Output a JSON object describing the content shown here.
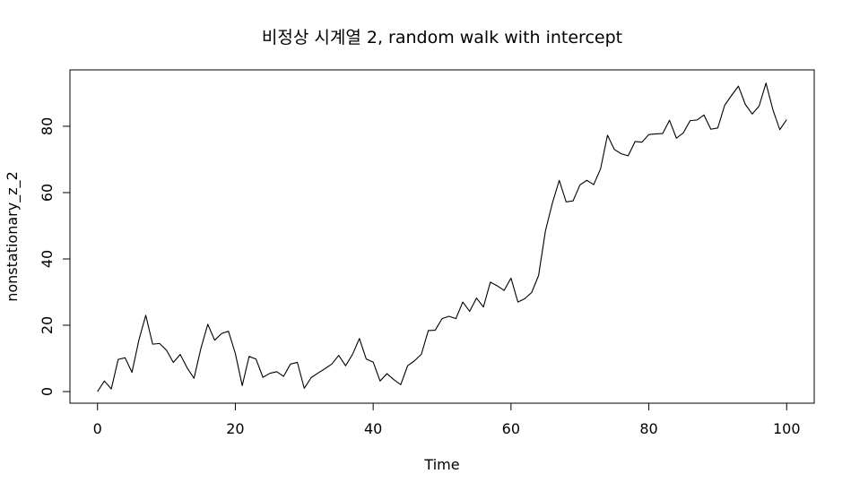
{
  "chart_data": {
    "type": "line",
    "title": "비정상 시계열 2, random walk with intercept",
    "xlabel": "Time",
    "ylabel": "nonstationary_z_2",
    "xlim": [
      -4,
      104
    ],
    "ylim": [
      -3.5,
      97
    ],
    "x_ticks": [
      0,
      20,
      40,
      60,
      80,
      100
    ],
    "y_ticks": [
      0,
      20,
      40,
      60,
      80
    ],
    "x_tick_labels": [
      "0",
      "20",
      "40",
      "60",
      "80",
      "100"
    ],
    "y_tick_labels": [
      "0",
      "20",
      "40",
      "60",
      "80"
    ],
    "grid": false,
    "line_color": "#000000",
    "series": [
      {
        "x": [
          0,
          1,
          2,
          3,
          4,
          5,
          6,
          7,
          8,
          9,
          10,
          11,
          12,
          13,
          14,
          15,
          16,
          17,
          18,
          19,
          20,
          21,
          22,
          23,
          24,
          25,
          26,
          27,
          28,
          29,
          30,
          31,
          32,
          33,
          34,
          35,
          36,
          37,
          38,
          39,
          40,
          41,
          42,
          43,
          44,
          45,
          46,
          47,
          48,
          49,
          50,
          51,
          52,
          53,
          54,
          55,
          56,
          57,
          58,
          59,
          60,
          61,
          62,
          63,
          64,
          65,
          66,
          67,
          68,
          69,
          70,
          71,
          72,
          73,
          74,
          75,
          76,
          77,
          78,
          79,
          80,
          81,
          82,
          83,
          84,
          85,
          86,
          87,
          88,
          89,
          90,
          91,
          92,
          93,
          94,
          95,
          96,
          97,
          98,
          99,
          100
        ],
        "values": [
          0,
          3.2,
          0.8,
          9.7,
          10.2,
          5.8,
          15.5,
          23,
          14.3,
          14.5,
          12.5,
          8.8,
          11.2,
          7.2,
          4,
          13,
          20.3,
          15.5,
          17.5,
          18.2,
          11.5,
          1.8,
          10.6,
          9.8,
          4.3,
          5.5,
          6,
          4.6,
          8.3,
          8.8,
          1,
          4.2,
          5.6,
          6.9,
          8.3,
          10.9,
          7.8,
          11.2,
          16,
          9.8,
          8.9,
          3.2,
          5.4,
          3.6,
          2.1,
          7.8,
          9.3,
          11.3,
          18.4,
          18.5,
          22,
          22.7,
          22,
          27,
          24.2,
          28.2,
          25.5,
          33,
          31.9,
          30.5,
          34.2,
          27,
          28,
          29.9,
          35,
          48.5,
          56.8,
          63.7,
          57.2,
          57.5,
          62.3,
          63.7,
          62.4,
          67.2,
          77.3,
          73,
          71.7,
          71.1,
          75.4,
          75.2,
          77.5,
          77.7,
          77.8,
          81.8,
          76.4,
          78,
          81.7,
          81.9,
          83.4,
          79.1,
          79.5,
          86.3,
          89.3,
          92.1,
          86.6,
          83.7,
          86.1,
          93,
          85,
          79,
          82
        ]
      }
    ]
  }
}
